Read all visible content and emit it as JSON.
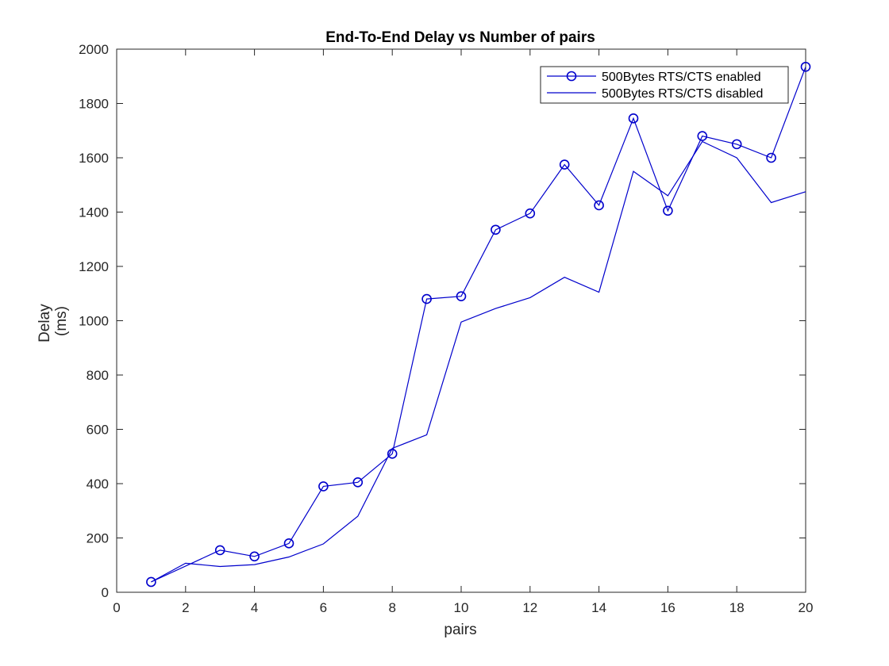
{
  "chart_data": {
    "type": "line",
    "title": "End-To-End Delay vs Number of pairs",
    "xlabel": "pairs",
    "ylabel": [
      "Delay",
      "(ms)"
    ],
    "xlim": [
      0,
      20
    ],
    "ylim": [
      0,
      2000
    ],
    "xticks": [
      0,
      2,
      4,
      6,
      8,
      10,
      12,
      14,
      16,
      18,
      20
    ],
    "yticks": [
      0,
      200,
      400,
      600,
      800,
      1000,
      1200,
      1400,
      1600,
      1800,
      2000
    ],
    "grid": false,
    "legend_position": "top-right",
    "series": [
      {
        "name": "500Bytes RTS/CTS enabled",
        "marker": "circle",
        "color": "#0000cc",
        "x": [
          1,
          3,
          4,
          5,
          6,
          7,
          8,
          9,
          10,
          11,
          12,
          13,
          14,
          15,
          16,
          17,
          18,
          19,
          20
        ],
        "y": [
          38,
          155,
          132,
          180,
          390,
          405,
          510,
          1080,
          1090,
          1335,
          1395,
          1575,
          1425,
          1745,
          1405,
          1680,
          1650,
          1600,
          1935
        ]
      },
      {
        "name": "500Bytes RTS/CTS disabled",
        "marker": "none",
        "color": "#0000cc",
        "x": [
          1,
          2,
          3,
          4,
          5,
          6,
          7,
          8,
          9,
          10,
          11,
          12,
          13,
          14,
          15,
          16,
          17,
          18,
          19,
          20
        ],
        "y": [
          38,
          107,
          95,
          102,
          130,
          178,
          280,
          530,
          580,
          995,
          1045,
          1085,
          1160,
          1105,
          1550,
          1460,
          1660,
          1600,
          1435,
          1475
        ]
      }
    ]
  }
}
